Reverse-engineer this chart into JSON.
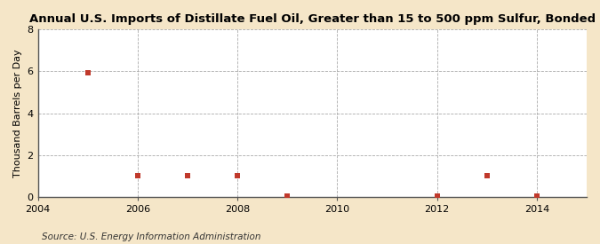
{
  "title": "Annual U.S. Imports of Distillate Fuel Oil, Greater than 15 to 500 ppm Sulfur, Bonded",
  "ylabel": "Thousand Barrels per Day",
  "source": "Source: U.S. Energy Information Administration",
  "x_data": [
    2005,
    2006,
    2007,
    2008,
    2009,
    2012,
    2013,
    2014
  ],
  "y_data": [
    5.945,
    1.0,
    1.0,
    1.0,
    0.03,
    0.03,
    1.0,
    0.03
  ],
  "xlim": [
    2004,
    2015
  ],
  "ylim": [
    0,
    8
  ],
  "yticks": [
    0,
    2,
    4,
    6,
    8
  ],
  "xticks": [
    2004,
    2006,
    2008,
    2010,
    2012,
    2014
  ],
  "marker_color": "#c0392b",
  "marker_shape": "s",
  "marker_size": 5,
  "bg_color": "#f5e6c8",
  "plot_bg_color": "#ffffff",
  "grid_color": "#aaaaaa",
  "grid_style": "--",
  "title_fontsize": 9.5,
  "axis_label_fontsize": 8,
  "tick_fontsize": 8,
  "source_fontsize": 7.5
}
